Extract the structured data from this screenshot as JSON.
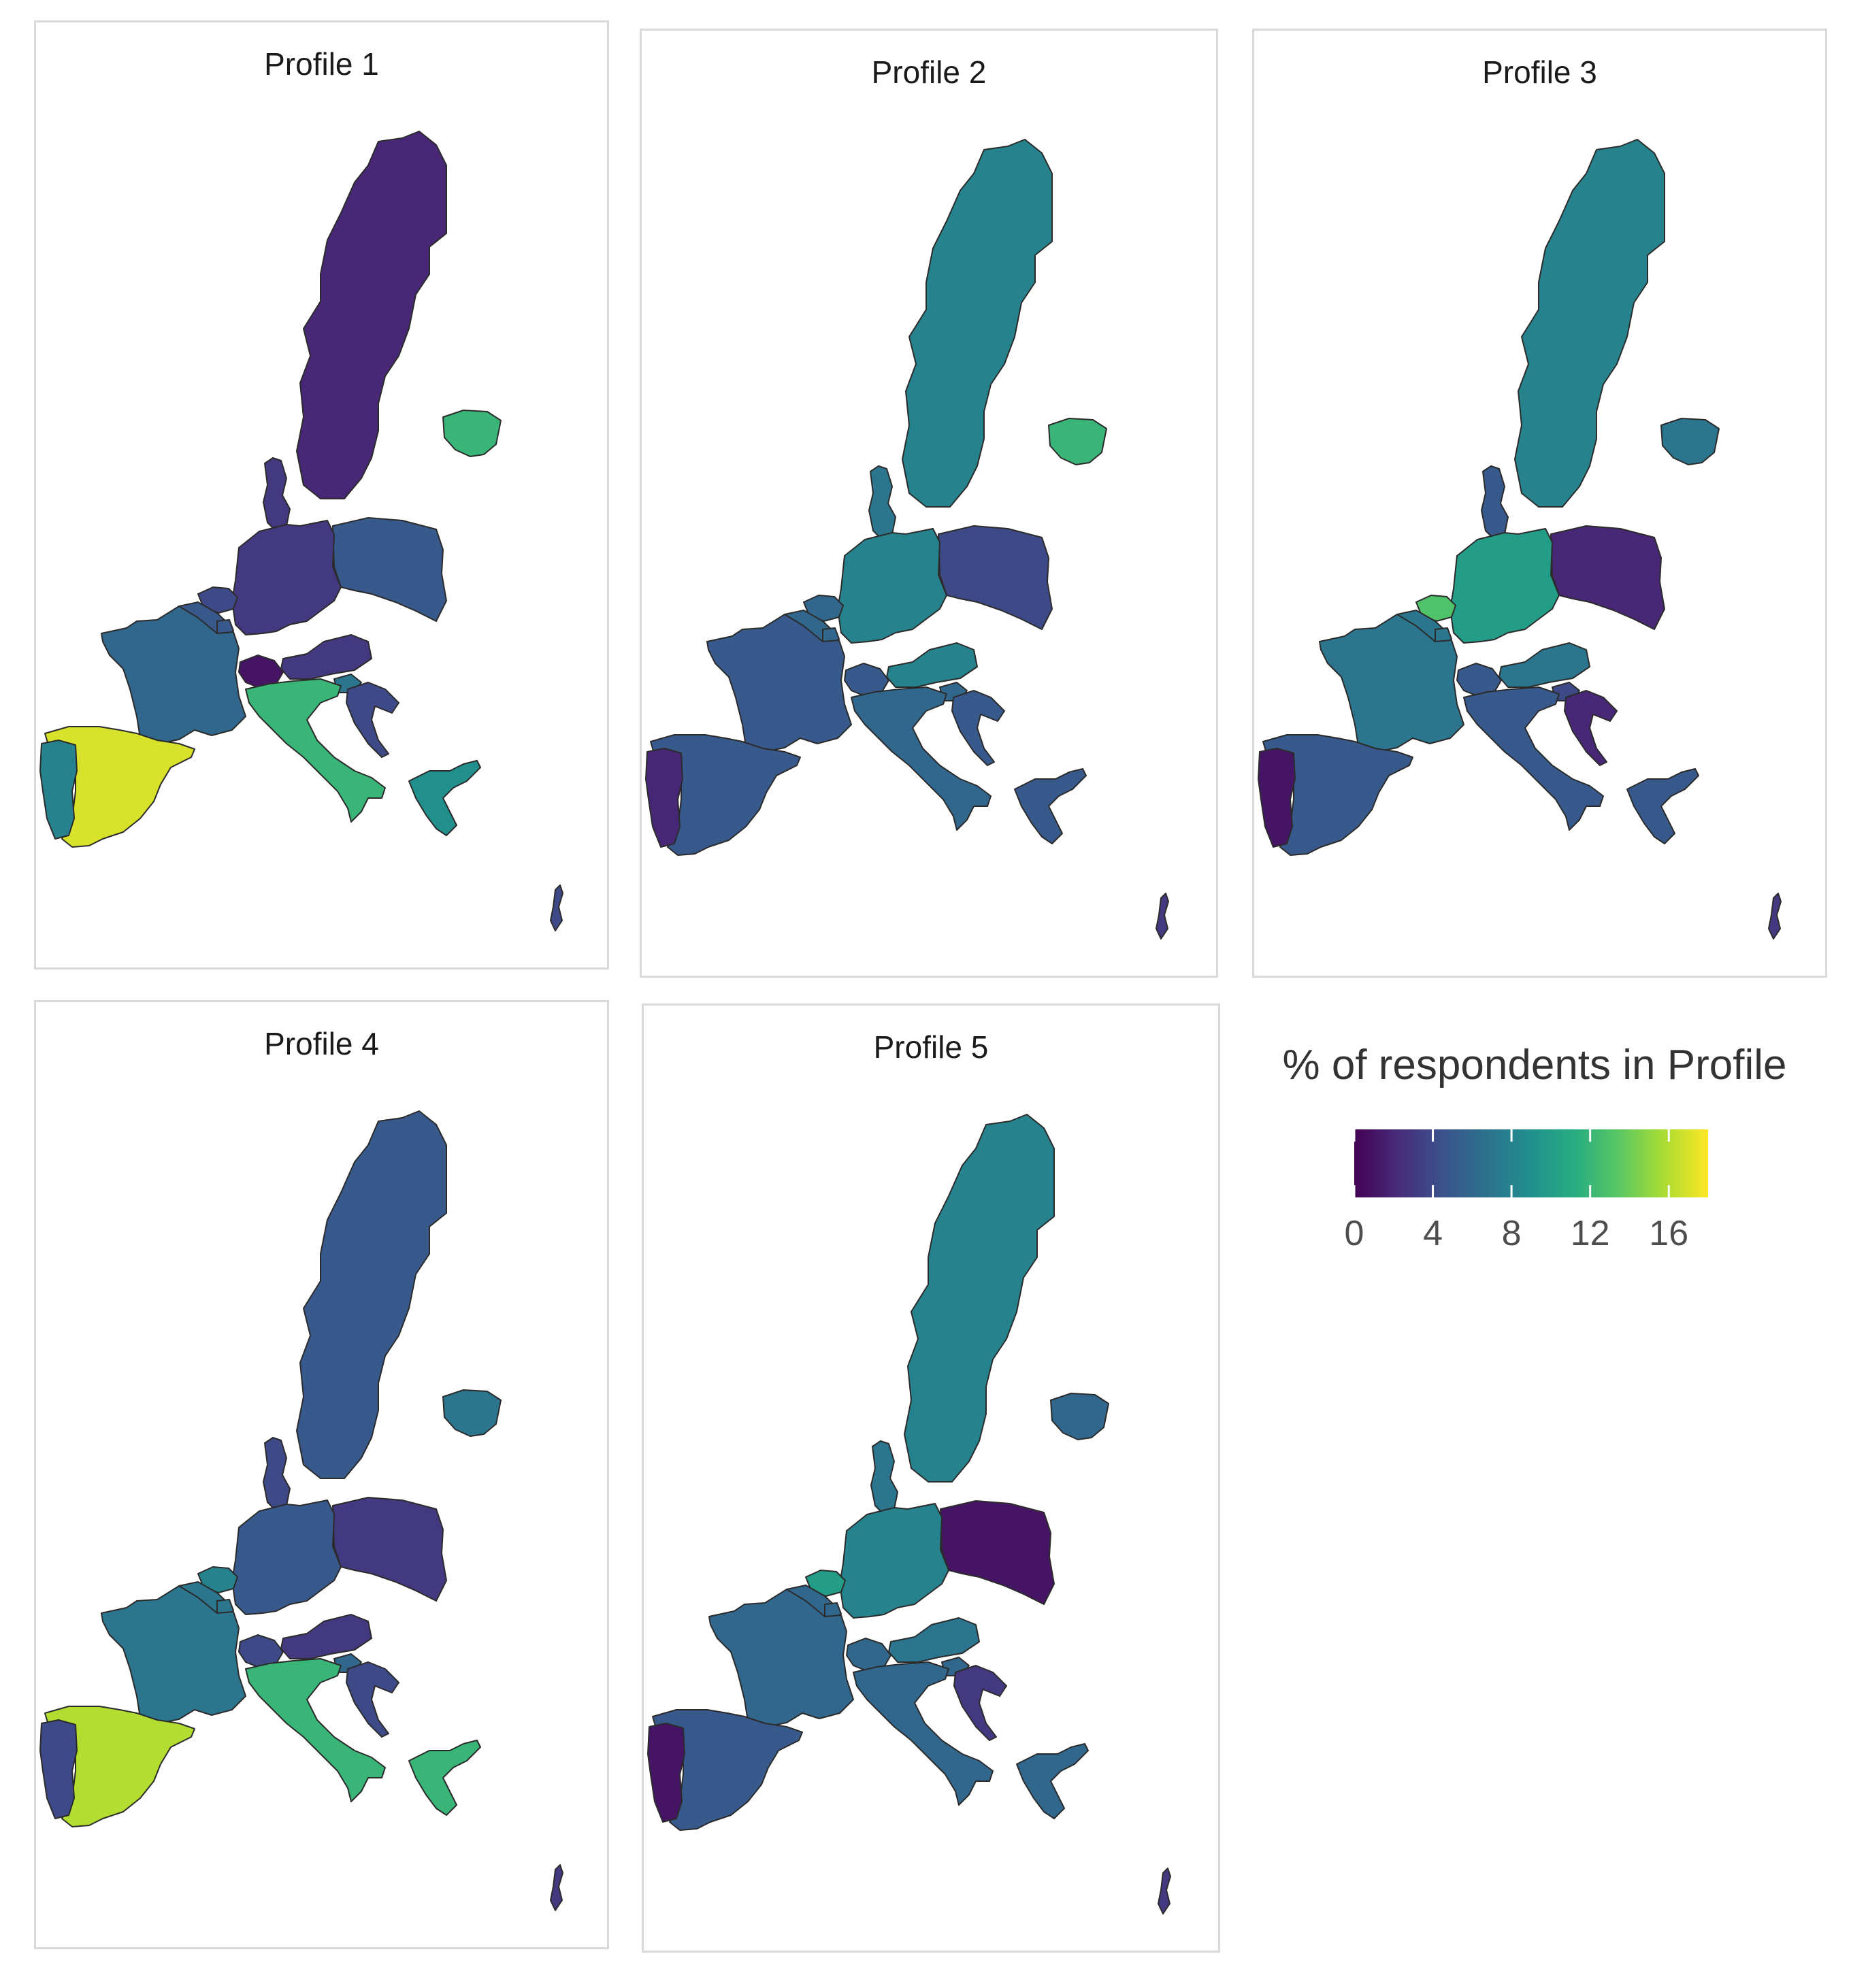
{
  "colors": {
    "v0": "#440154",
    "v1": "#472c7a",
    "v2": "#3b528b",
    "v3": "#2c728e",
    "v4": "#21908d",
    "v5": "#27ad81",
    "v6": "#5cc863",
    "v7": "#aadc32",
    "v8": "#fde725"
  },
  "legend": {
    "title": "% of respondents in Profile",
    "ticks": [
      {
        "label": "0",
        "value": 0
      },
      {
        "label": "4",
        "value": 4
      },
      {
        "label": "8",
        "value": 8
      },
      {
        "label": "12",
        "value": 12
      },
      {
        "label": "16",
        "value": 16
      }
    ],
    "range": [
      0,
      18
    ],
    "palette": "viridis"
  },
  "map_data": {
    "type": "choropleth",
    "region": "EU countries",
    "value_unit": "% of respondents in Profile",
    "panels": [
      {
        "title": "Profile 1",
        "values": {
          "sweden": 2,
          "finland": 12,
          "denmark": 3,
          "germany": 3,
          "poland": 5,
          "france": 6,
          "belgium": 5,
          "netherlands": 4,
          "luxembourg": 5,
          "austria": 3,
          "switzerland": 1,
          "italy": 12,
          "slovenia": 7,
          "croatia": 4,
          "spain": 17,
          "portugal": 8,
          "greece": 9,
          "cyprus": 4
        }
      },
      {
        "title": "Profile 2",
        "values": {
          "sweden": 8,
          "finland": 12,
          "denmark": 7,
          "germany": 8,
          "poland": 4,
          "france": 5,
          "belgium": 6,
          "netherlands": 6,
          "luxembourg": 6,
          "austria": 8,
          "switzerland": 5,
          "italy": 6,
          "slovenia": 6,
          "croatia": 5,
          "spain": 5,
          "portugal": 2,
          "greece": 5,
          "cyprus": 3
        }
      },
      {
        "title": "Profile 3",
        "values": {
          "sweden": 8,
          "finland": 7,
          "denmark": 5,
          "germany": 10,
          "poland": 2,
          "france": 7,
          "belgium": 7,
          "netherlands": 13,
          "luxembourg": 7,
          "austria": 7,
          "switzerland": 5,
          "italy": 5,
          "slovenia": 4,
          "croatia": 2,
          "spain": 5,
          "portugal": 1,
          "greece": 5,
          "cyprus": 3
        }
      },
      {
        "title": "Profile 4",
        "values": {
          "sweden": 5,
          "finland": 7,
          "denmark": 4,
          "germany": 5,
          "poland": 3,
          "france": 7,
          "belgium": 7,
          "netherlands": 8,
          "luxembourg": 7,
          "austria": 3,
          "switzerland": 4,
          "italy": 12,
          "slovenia": 6,
          "croatia": 4,
          "spain": 16,
          "portugal": 4,
          "greece": 12,
          "cyprus": 3
        }
      },
      {
        "title": "Profile 5",
        "values": {
          "sweden": 8,
          "finland": 6,
          "denmark": 7,
          "germany": 8,
          "poland": 1,
          "france": 6,
          "belgium": 6,
          "netherlands": 10,
          "luxembourg": 6,
          "austria": 7,
          "switzerland": 6,
          "italy": 6,
          "slovenia": 6,
          "croatia": 3,
          "spain": 5,
          "portugal": 1,
          "greece": 6,
          "cyprus": 3
        }
      }
    ]
  }
}
